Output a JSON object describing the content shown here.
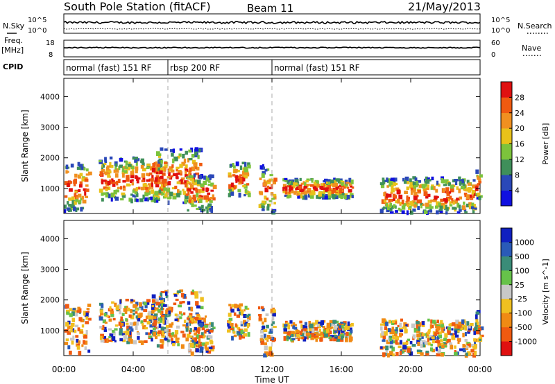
{
  "chart_data": {
    "type": "heatmap",
    "title": "South Pole Station (fitACF)",
    "beam": "Beam 11",
    "date": "21/May/2013",
    "time_axis": {
      "label": "Time UT",
      "range_hours": [
        0,
        24
      ],
      "ticks": [
        "00:00",
        "04:00",
        "08:00",
        "12:00",
        "16:00",
        "20:00",
        "00:00"
      ]
    },
    "top_strip": {
      "left_label": "N.Sky",
      "right_label": "N.Search",
      "left_ticks": [
        "10^5",
        "10^0"
      ],
      "right_ticks": [
        "10^5",
        "10^0"
      ]
    },
    "freq_strip": {
      "left_label_line1": "Freq.",
      "left_label_line2": "[MHz]",
      "left_ticks": [
        "18",
        "8"
      ],
      "right_label": "Nave",
      "right_ticks": [
        "60",
        "0"
      ]
    },
    "cpid": {
      "label": "CPID",
      "segments": [
        {
          "name": "normal (fast) 151 RF",
          "start_hour": 0,
          "end_hour": 6
        },
        {
          "name": "rbsp 200 RF",
          "start_hour": 6,
          "end_hour": 12
        },
        {
          "name": "normal (fast) 151 RF",
          "start_hour": 12,
          "end_hour": 24
        }
      ]
    },
    "panels": [
      {
        "type": "heatmap",
        "quantity": "Power",
        "ylabel": "Slant Range [km]",
        "ylim_km": [
          180,
          4600
        ],
        "yticks": [
          "1000",
          "2000",
          "3000",
          "4000"
        ],
        "colorbar_label": "Power [dB]",
        "colorbar_ticks": [
          "4",
          "8",
          "12",
          "16",
          "20",
          "24",
          "28"
        ],
        "colors": [
          "#1010e0",
          "#2a48b8",
          "#3f8f5a",
          "#7cc33c",
          "#e8c21a",
          "#f09020",
          "#f05a10",
          "#e01010"
        ],
        "echo_regions": [
          {
            "t0": 0.0,
            "t1": 1.4,
            "r0": 300,
            "r1": 1900
          },
          {
            "t0": 2.0,
            "t1": 5.8,
            "r0": 650,
            "r1": 2050
          },
          {
            "t0": 5.0,
            "t1": 7.9,
            "r0": 550,
            "r1": 2350
          },
          {
            "t0": 7.0,
            "t1": 8.6,
            "r0": 300,
            "r1": 1500
          },
          {
            "t0": 9.4,
            "t1": 10.6,
            "r0": 800,
            "r1": 1900
          },
          {
            "t0": 11.2,
            "t1": 12.1,
            "r0": 250,
            "r1": 1800
          },
          {
            "t0": 12.6,
            "t1": 16.6,
            "r0": 750,
            "r1": 1350
          },
          {
            "t0": 18.2,
            "t1": 23.7,
            "r0": 250,
            "r1": 1400
          },
          {
            "t0": 23.7,
            "t1": 24.0,
            "r0": 700,
            "r1": 1700
          }
        ]
      },
      {
        "type": "heatmap",
        "quantity": "Velocity",
        "ylabel": "Slant Range [km]",
        "ylim_km": [
          180,
          4600
        ],
        "yticks": [
          "1000",
          "2000",
          "3000",
          "4000"
        ],
        "colorbar_label": "Velocity [m s^-1]",
        "colorbar_ticks": [
          "1000",
          "500",
          "100",
          "25",
          "-25",
          "-100",
          "-500",
          "-1000"
        ],
        "colors": [
          "#1020c0",
          "#2a5ab8",
          "#3a8c78",
          "#66c24a",
          "#c8c8c8",
          "#f0c020",
          "#f08a14",
          "#f05a10",
          "#e01010"
        ],
        "echo_regions": [
          {
            "t0": 0.0,
            "t1": 1.4,
            "r0": 300,
            "r1": 1900
          },
          {
            "t0": 2.0,
            "t1": 5.8,
            "r0": 650,
            "r1": 2050
          },
          {
            "t0": 5.0,
            "t1": 7.9,
            "r0": 550,
            "r1": 2350
          },
          {
            "t0": 7.0,
            "t1": 8.6,
            "r0": 300,
            "r1": 1500
          },
          {
            "t0": 9.4,
            "t1": 10.6,
            "r0": 800,
            "r1": 1900
          },
          {
            "t0": 11.2,
            "t1": 12.1,
            "r0": 250,
            "r1": 1800
          },
          {
            "t0": 12.6,
            "t1": 16.6,
            "r0": 750,
            "r1": 1350
          },
          {
            "t0": 18.2,
            "t1": 23.7,
            "r0": 250,
            "r1": 1400
          },
          {
            "t0": 23.7,
            "t1": 24.0,
            "r0": 700,
            "r1": 1700
          }
        ]
      }
    ],
    "grid": false,
    "mode_change_marks_hours": [
      6,
      12
    ]
  }
}
